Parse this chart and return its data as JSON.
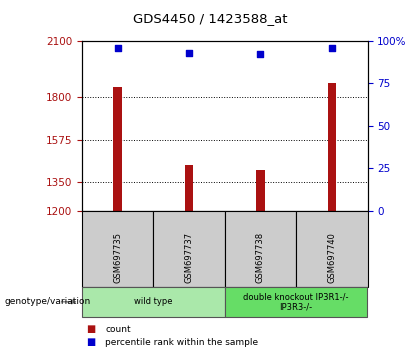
{
  "title": "GDS4450 / 1423588_at",
  "samples": [
    "GSM697735",
    "GSM697737",
    "GSM697738",
    "GSM697740"
  ],
  "counts": [
    1855,
    1440,
    1415,
    1875
  ],
  "percentiles": [
    96,
    93,
    92,
    96
  ],
  "ylim_left": [
    1200,
    2100
  ],
  "yticks_left": [
    1200,
    1350,
    1575,
    1800,
    2100
  ],
  "ylim_right": [
    0,
    100
  ],
  "yticks_right": [
    0,
    25,
    50,
    75,
    100
  ],
  "bar_color": "#aa1111",
  "dot_color": "#0000cc",
  "bar_width": 0.12,
  "groups": [
    {
      "label": "wild type",
      "samples": [
        0,
        1
      ],
      "color": "#aae8aa"
    },
    {
      "label": "double knockout IP3R1-/-\nIP3R3-/-",
      "samples": [
        2,
        3
      ],
      "color": "#66dd66"
    }
  ],
  "genotype_label": "genotype/variation",
  "legend_count_label": "count",
  "legend_pct_label": "percentile rank within the sample",
  "bg_color": "#ffffff",
  "plot_bg": "#ffffff",
  "sample_box_color": "#cccccc"
}
